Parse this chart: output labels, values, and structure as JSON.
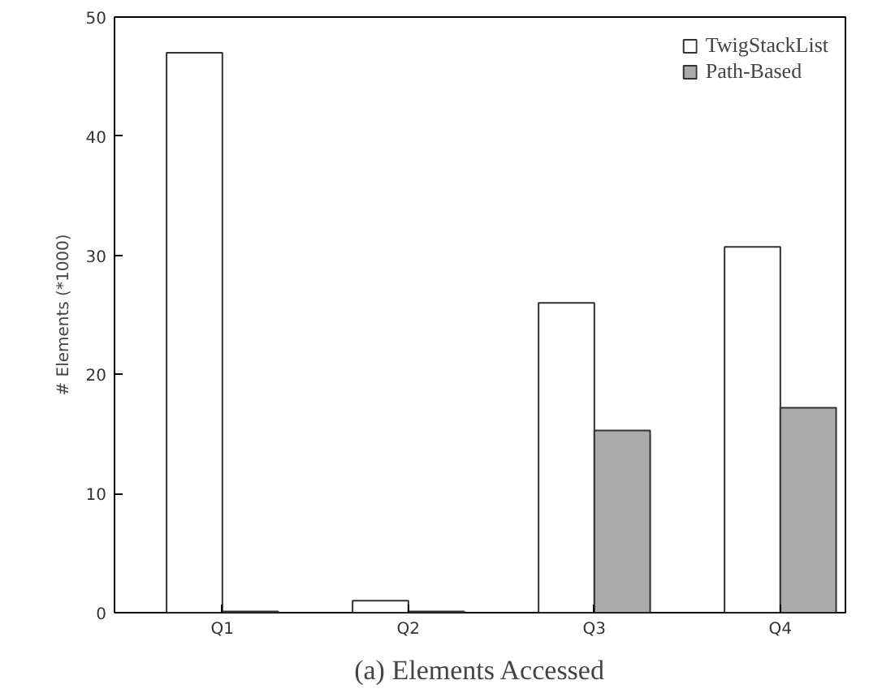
{
  "chart_data": {
    "type": "bar",
    "ylabel": "# Elements (*1000)",
    "categories": [
      "Q1",
      "Q2",
      "Q3",
      "Q4"
    ],
    "series": [
      {
        "name": "TwigStackList",
        "color": "#ffffff",
        "values": [
          47,
          1,
          26,
          30.7
        ]
      },
      {
        "name": "Path-Based",
        "color": "#aaaaaa",
        "values": [
          0.1,
          0.1,
          15.3,
          17.2
        ]
      }
    ],
    "ylim": [
      0,
      50
    ],
    "yticks": [
      0,
      10,
      20,
      30,
      40,
      50
    ],
    "grid": false,
    "legend": "top right",
    "annotations": [
      "(a) Elements Accessed"
    ]
  }
}
